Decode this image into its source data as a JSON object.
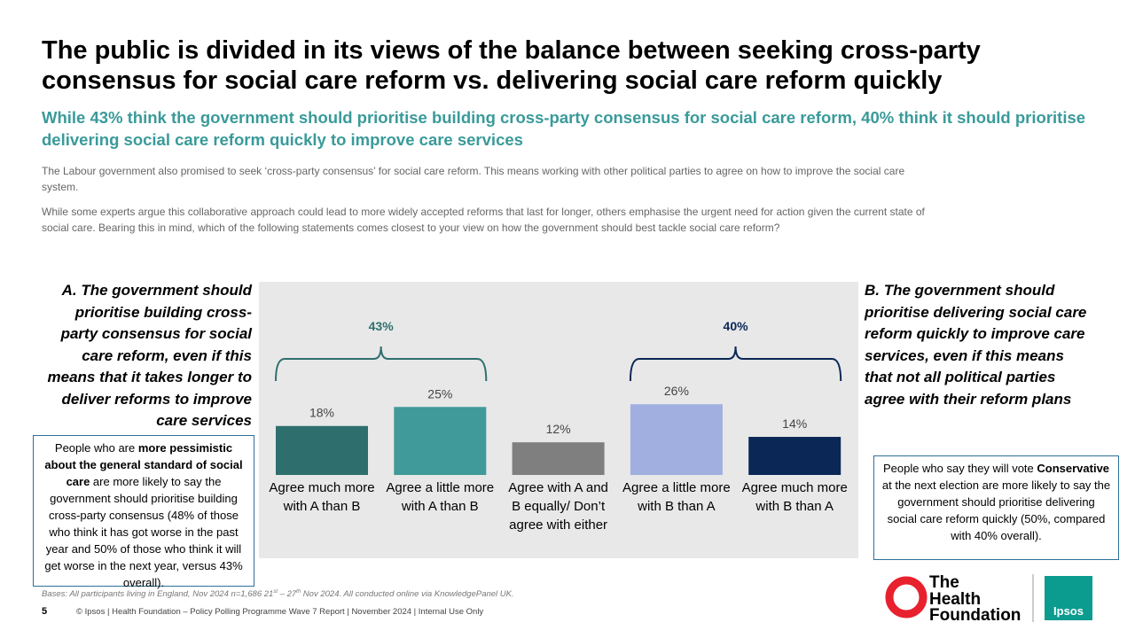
{
  "title": "The public is divided in its views of the balance between seeking cross-party consensus for social care reform vs. delivering social care reform quickly",
  "subtitle": "While 43% think the government should prioritise building cross-party consensus for social care reform, 40% think it should prioritise delivering social care reform quickly to improve care services",
  "intro": [
    "The Labour government also promised to seek ‘cross-party consensus’ for social care reform. This means working with other political parties to agree on how to improve the social care system.",
    "While some experts argue this collaborative approach could lead to more widely accepted reforms that last for longer, others emphasise the urgent need for action given the current state of social care. Bearing this in mind, which of the following statements comes closest to your view on how the government should best tackle social care reform?"
  ],
  "statement_a": "A. The government should prioritise building cross-party consensus for social care reform, even if this means that it takes longer to deliver reforms to improve care services",
  "statement_b": "B. The government should prioritise delivering social care reform quickly to improve care services, even if this means that not all political parties agree with their reform plans",
  "callout_left": [
    {
      "text": "People who are "
    },
    {
      "text": "more pessimistic about the general standard of social care",
      "bold": true
    },
    {
      "text": " are more likely to say the government should prioritise building cross-party consensus (48% of those who think it has got worse in the past year and 50% of those who think it will get worse in the next year, versus 43% overall)."
    }
  ],
  "callout_right": [
    {
      "text": "People who say they will vote "
    },
    {
      "text": "Conservative",
      "bold": true
    },
    {
      "text": " at the next election are more likely to say the government should prioritise delivering social care reform quickly (50%, compared with 40% overall)."
    }
  ],
  "chart_data": {
    "type": "bar",
    "categories": [
      "Agree much more with A than B",
      "Agree a little more with A than B",
      "Agree with A and B equally/ Don’t agree with either",
      "Agree a little more with B than A",
      "Agree much more with B than A"
    ],
    "values": [
      18,
      25,
      12,
      26,
      14
    ],
    "value_labels": [
      "18%",
      "25%",
      "12%",
      "26%",
      "14%"
    ],
    "colors": [
      "#2e6f6e",
      "#3f9a99",
      "#7f7f7f",
      "#a0aee0",
      "#0a2756"
    ],
    "brackets": [
      {
        "value": 43,
        "label": "43%",
        "color": "#2e6f6e"
      },
      {
        "value": 40,
        "label": "40%",
        "color": "#0a2756"
      }
    ]
  },
  "bases": [
    {
      "text": "Bases: All participants living in England, Nov 2024 n=1,686  21"
    },
    {
      "text": "st",
      "sup": true
    },
    {
      "text": " – 27"
    },
    {
      "text": "th",
      "sup": true
    },
    {
      "text": " Nov 2024. All conducted online via KnowledgePanel UK."
    }
  ],
  "page_number": "5",
  "footer": "© Ipsos | Health Foundation – Policy Polling Programme Wave 7 Report | November 2024 | Internal Use Only",
  "logos": {
    "health_foundation": [
      "The",
      "Health",
      "Foundation"
    ],
    "ipsos": "Ipsos"
  }
}
